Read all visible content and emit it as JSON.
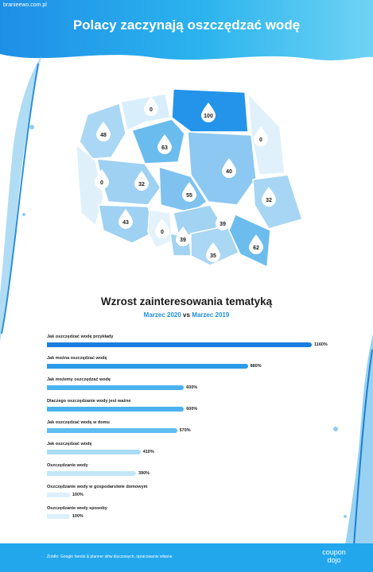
{
  "header": {
    "source_url": "branieewo.com.pl",
    "title": "Polacy zaczynają oszczędzać wodę"
  },
  "map": {
    "regions": [
      {
        "name": "zachodniopomorskie",
        "value": "48"
      },
      {
        "name": "pomorskie",
        "value": "0"
      },
      {
        "name": "warmińsko-mazurskie",
        "value": "100"
      },
      {
        "name": "podlaskie",
        "value": "0"
      },
      {
        "name": "kujawsko-pomorskie",
        "value": "63"
      },
      {
        "name": "lubuskie",
        "value": "0"
      },
      {
        "name": "wielkopolskie",
        "value": "32"
      },
      {
        "name": "mazowieckie",
        "value": "40"
      },
      {
        "name": "łódzkie",
        "value": "55"
      },
      {
        "name": "lubelskie",
        "value": "32"
      },
      {
        "name": "dolnośląskie",
        "value": "43"
      },
      {
        "name": "opolskie",
        "value": "0"
      },
      {
        "name": "świętokrzyskie",
        "value": "39"
      },
      {
        "name": "śląskie",
        "value": "39"
      },
      {
        "name": "małopolskie",
        "value": "35"
      },
      {
        "name": "podkarpackie",
        "value": "62"
      }
    ]
  },
  "chart_data": {
    "type": "bar",
    "orientation": "horizontal",
    "title": "Wzrost zainteresowania tematyką",
    "subtitle_parts": [
      "Marzec 2020",
      "vs",
      "Marzec 2019"
    ],
    "categories": [
      "Jak oszczędzać wodę przykłady",
      "Jak można oszczędzać wodę",
      "Jak możemy oszczędzać wodę",
      "Dlaczego oszczędzanie wody jest ważne",
      "Jak oszczędzać wodę w domu",
      "Jak oszczędzać wodę",
      "Oszczędzanie wody",
      "Oszczędzanie wody w gospodarstwie domowym",
      "Oszczędzanie wody sposoby"
    ],
    "values": [
      1160,
      880,
      600,
      600,
      570,
      410,
      390,
      100,
      100
    ],
    "value_labels": [
      "1160%",
      "880%",
      "600%",
      "600%",
      "570%",
      "410%",
      "390%",
      "100%",
      "100%"
    ],
    "xlim": [
      0,
      1160
    ],
    "colors": [
      "#1a7fe0",
      "#2b9be8",
      "#49b2ef",
      "#49b2ef",
      "#5ebdf1",
      "#a9dcf6",
      "#c2e6f8",
      "#dcf0fb",
      "#dcf0fb"
    ]
  },
  "footer": {
    "source": "Źródło: Google trends & planner słów kluczowych, opracowanie własne",
    "brand_line1": "coupon",
    "brand_line2": "dojo"
  }
}
